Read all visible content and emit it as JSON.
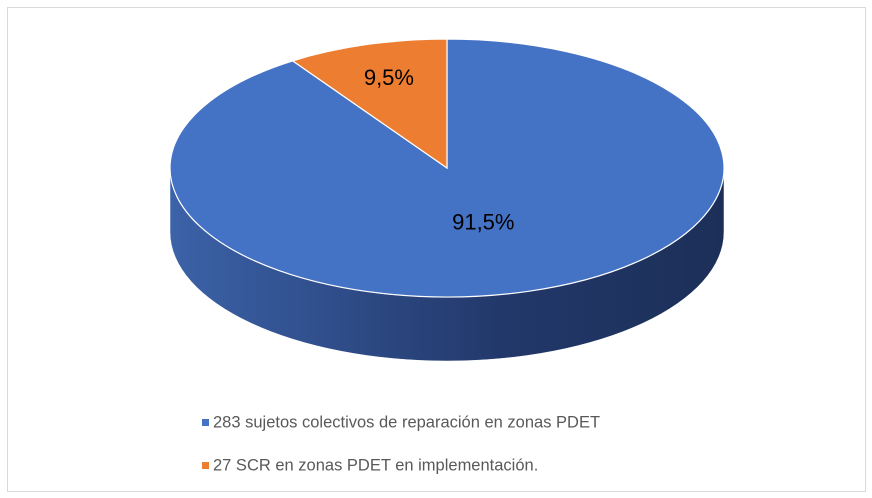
{
  "chart_data": {
    "type": "pie3d",
    "categories": [
      "283 sujetos colectivos de reparación en zonas PDET",
      "27 SCR en zonas PDET en implementación."
    ],
    "values": [
      91.5,
      9.5
    ],
    "value_labels": [
      "91,5%",
      "9,5%"
    ],
    "colors": [
      "#4472c4",
      "#ed7d31"
    ],
    "legend": "bottom"
  }
}
